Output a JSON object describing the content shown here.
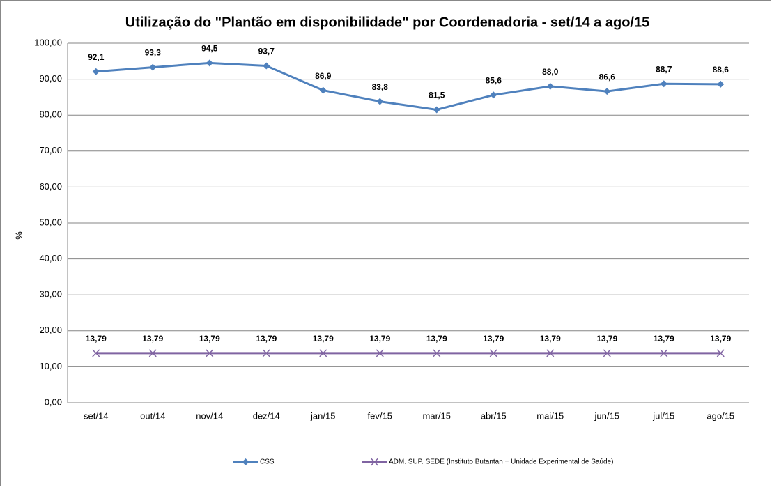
{
  "chart_data": {
    "type": "line",
    "title": "Utilização do \"Plantão em disponibilidade\" por Coordenadoria - set/14 a ago/15",
    "y_label": "%",
    "categories": [
      "set/14",
      "out/14",
      "nov/14",
      "dez/14",
      "jan/15",
      "fev/15",
      "mar/15",
      "abr/15",
      "mai/15",
      "jun/15",
      "jul/15",
      "ago/15"
    ],
    "series": [
      {
        "name": "CSS",
        "color": "#4f81bd",
        "marker": "diamond",
        "values": [
          92.1,
          93.3,
          94.5,
          93.7,
          86.9,
          83.8,
          81.5,
          85.6,
          88.0,
          86.6,
          88.7,
          88.6
        ],
        "value_labels": [
          "92,1",
          "93,3",
          "94,5",
          "93,7",
          "86,9",
          "83,8",
          "81,5",
          "85,6",
          "88,0",
          "86,6",
          "88,7",
          "88,6"
        ]
      },
      {
        "name": "ADM. SUP. SEDE (Instituto Butantan + Unidade Experimental de Saúde)",
        "color": "#8064a2",
        "marker": "x",
        "values": [
          13.79,
          13.79,
          13.79,
          13.79,
          13.79,
          13.79,
          13.79,
          13.79,
          13.79,
          13.79,
          13.79,
          13.79
        ],
        "value_labels": [
          "13,79",
          "13,79",
          "13,79",
          "13,79",
          "13,79",
          "13,79",
          "13,79",
          "13,79",
          "13,79",
          "13,79",
          "13,79",
          "13,79"
        ]
      }
    ],
    "ylim": [
      0,
      100
    ],
    "yticks": [
      {
        "value": 0,
        "label": "0,00"
      },
      {
        "value": 10,
        "label": "10,00"
      },
      {
        "value": 20,
        "label": "20,00"
      },
      {
        "value": 30,
        "label": "30,00"
      },
      {
        "value": 40,
        "label": "40,00"
      },
      {
        "value": 50,
        "label": "50,00"
      },
      {
        "value": 60,
        "label": "60,00"
      },
      {
        "value": 70,
        "label": "70,00"
      },
      {
        "value": 80,
        "label": "80,00"
      },
      {
        "value": 90,
        "label": "90,00"
      },
      {
        "value": 100,
        "label": "100,00"
      }
    ],
    "grid": true,
    "legend": "bottom"
  }
}
